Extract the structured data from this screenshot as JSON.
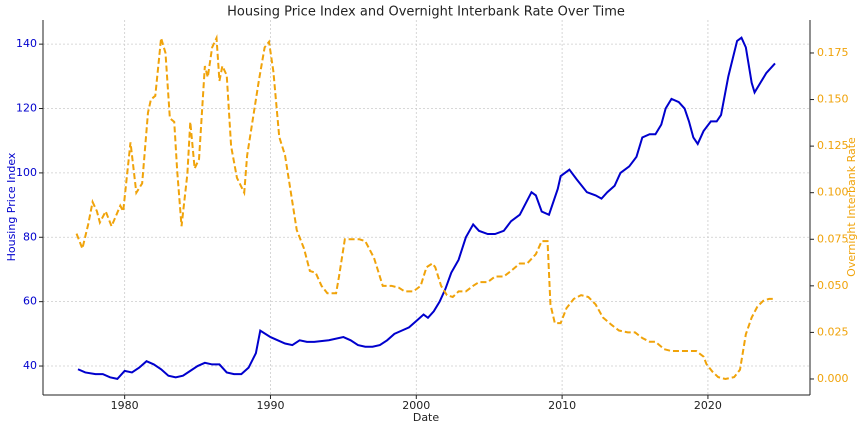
{
  "chart_data": {
    "type": "line",
    "title": "Housing Price Index and Overnight Interbank Rate Over Time",
    "x_label": "Date",
    "y_label": "Housing Price Index",
    "y2_label": "Overnight Interbank Rate",
    "xlim": [
      1974.4,
      2027.0
    ],
    "xticks": [
      1980,
      1990,
      2000,
      2010,
      2020
    ],
    "ylim": [
      31,
      147.5
    ],
    "yticks": [
      40,
      60,
      80,
      100,
      120,
      140
    ],
    "y2lim": [
      -0.0086,
      0.1927
    ],
    "y2ticks": [
      {
        "value": 0,
        "label": "0.000"
      },
      0.025,
      {
        "value": 0.05,
        "label": "0.050"
      },
      0.075,
      {
        "value": 0.1,
        "label": "0.100"
      },
      0.125,
      {
        "value": 0.15,
        "label": "0.150"
      },
      0.175
    ],
    "grid": true,
    "series": [
      {
        "name": "Housing Price Index",
        "color": "#0000cd",
        "axis": "y",
        "x": [
          1976.8,
          1977.3,
          1978.0,
          1978.5,
          1979.0,
          1979.5,
          1980.0,
          1980.5,
          1981.0,
          1981.5,
          1982.0,
          1982.5,
          1983.0,
          1983.5,
          1984.0,
          1984.5,
          1985.0,
          1985.5,
          1986.0,
          1986.5,
          1987.0,
          1987.5,
          1988.0,
          1988.5,
          1989.0,
          1989.3,
          1990.0,
          1990.5,
          1991.0,
          1991.5,
          1992.0,
          1992.5,
          1993.0,
          1994.0,
          1995.0,
          1995.5,
          1996.0,
          1996.5,
          1997.0,
          1997.5,
          1998.0,
          1998.5,
          1999.0,
          1999.5,
          2000.0,
          2000.5,
          2000.8,
          2001.2,
          2001.6,
          2002.0,
          2002.4,
          2002.9,
          2003.4,
          2003.9,
          2004.3,
          2004.9,
          2005.4,
          2006.0,
          2006.5,
          2007.1,
          2007.9,
          2008.2,
          2008.6,
          2009.1,
          2009.7,
          2009.9,
          2010.5,
          2011.0,
          2011.7,
          2012.3,
          2012.7,
          2013.1,
          2013.6,
          2014.0,
          2014.6,
          2015.1,
          2015.5,
          2016.0,
          2016.4,
          2016.8,
          2017.1,
          2017.5,
          2018.0,
          2018.4,
          2018.7,
          2019.0,
          2019.3,
          2019.7,
          2020.2,
          2020.6,
          2020.9,
          2021.4,
          2022.0,
          2022.3,
          2022.6,
          2023.0,
          2023.2,
          2023.6,
          2024.0,
          2024.6
        ],
        "values": [
          39,
          38,
          37.5,
          37.5,
          36.5,
          36,
          38.5,
          38,
          39.5,
          41.5,
          40.5,
          39,
          37,
          36.5,
          37,
          38.5,
          40,
          41,
          40.5,
          40.5,
          38,
          37.5,
          37.5,
          39.5,
          44,
          51,
          49,
          48,
          47,
          46.5,
          48,
          47.5,
          47.5,
          48,
          49,
          48,
          46.5,
          46,
          46,
          46.5,
          48,
          50,
          51,
          52,
          54,
          56,
          55,
          57,
          60,
          64,
          69,
          73,
          80,
          84,
          82,
          81,
          81,
          82,
          85,
          87,
          94,
          93,
          88,
          87,
          95,
          99,
          101,
          98,
          94,
          93,
          92,
          94,
          96,
          100,
          102,
          105,
          111,
          112,
          112,
          115,
          120,
          123,
          122,
          120,
          116,
          111,
          109,
          113,
          116,
          116,
          118,
          130,
          141,
          142,
          139,
          128,
          125,
          128,
          131,
          134
        ]
      },
      {
        "name": "Overnight Interbank Rate",
        "color": "#f0a30a",
        "axis": "y2",
        "x": [
          1976.7,
          1977.1,
          1977.5,
          1977.8,
          1978.1,
          1978.3,
          1978.7,
          1979.1,
          1979.7,
          1979.9,
          1980.4,
          1980.8,
          1981.2,
          1981.6,
          1981.8,
          1982.1,
          1982.5,
          1982.8,
          1983.1,
          1983.4,
          1983.6,
          1983.9,
          1984.3,
          1984.5,
          1984.8,
          1985.1,
          1985.5,
          1985.7,
          1986.0,
          1986.3,
          1986.5,
          1986.7,
          1987.0,
          1987.3,
          1987.7,
          1988.2,
          1988.4,
          1988.8,
          1989.2,
          1989.6,
          1989.9,
          1990.2,
          1990.6,
          1991.0,
          1991.4,
          1991.8,
          1992.3,
          1992.7,
          1993.1,
          1993.5,
          1993.9,
          1994.5,
          1994.7,
          1995.1,
          1995.5,
          1996.1,
          1996.5,
          1997.1,
          1997.5,
          1997.7,
          1998.3,
          1998.8,
          1999.2,
          1999.8,
          2000.3,
          2000.7,
          2001.1,
          2001.3,
          2001.7,
          2002.1,
          2002.5,
          2002.9,
          2003.4,
          2003.9,
          2004.3,
          2004.9,
          2005.4,
          2006.0,
          2006.5,
          2007.1,
          2007.6,
          2008.2,
          2008.6,
          2009.0,
          2009.2,
          2009.5,
          2009.9,
          2010.3,
          2010.8,
          2011.3,
          2011.8,
          2012.3,
          2012.8,
          2013.4,
          2013.9,
          2014.5,
          2015.0,
          2015.5,
          2016.0,
          2016.4,
          2017.0,
          2017.5,
          2018.0,
          2018.7,
          2019.2,
          2019.7,
          2019.9,
          2020.3,
          2020.7,
          2021.2,
          2021.8,
          2022.2,
          2022.6,
          2023.0,
          2023.4,
          2023.8,
          2024.2,
          2024.6
        ],
        "values": [
          0.078,
          0.07,
          0.083,
          0.095,
          0.09,
          0.084,
          0.09,
          0.082,
          0.093,
          0.09,
          0.127,
          0.1,
          0.105,
          0.143,
          0.15,
          0.152,
          0.183,
          0.175,
          0.14,
          0.138,
          0.112,
          0.082,
          0.11,
          0.138,
          0.113,
          0.118,
          0.168,
          0.162,
          0.178,
          0.183,
          0.16,
          0.168,
          0.163,
          0.125,
          0.108,
          0.1,
          0.12,
          0.14,
          0.16,
          0.178,
          0.181,
          0.165,
          0.13,
          0.12,
          0.1,
          0.08,
          0.07,
          0.058,
          0.057,
          0.05,
          0.046,
          0.046,
          0.055,
          0.075,
          0.075,
          0.075,
          0.074,
          0.065,
          0.055,
          0.05,
          0.05,
          0.049,
          0.047,
          0.047,
          0.05,
          0.06,
          0.062,
          0.06,
          0.05,
          0.045,
          0.044,
          0.047,
          0.047,
          0.05,
          0.052,
          0.052,
          0.055,
          0.055,
          0.058,
          0.062,
          0.062,
          0.067,
          0.074,
          0.074,
          0.04,
          0.03,
          0.03,
          0.038,
          0.043,
          0.045,
          0.044,
          0.04,
          0.033,
          0.029,
          0.026,
          0.025,
          0.025,
          0.022,
          0.02,
          0.02,
          0.016,
          0.015,
          0.015,
          0.015,
          0.015,
          0.012,
          0.008,
          0.004,
          0.001,
          0,
          0.001,
          0.005,
          0.024,
          0.033,
          0.039,
          0.042,
          0.043,
          0.043
        ]
      }
    ]
  }
}
